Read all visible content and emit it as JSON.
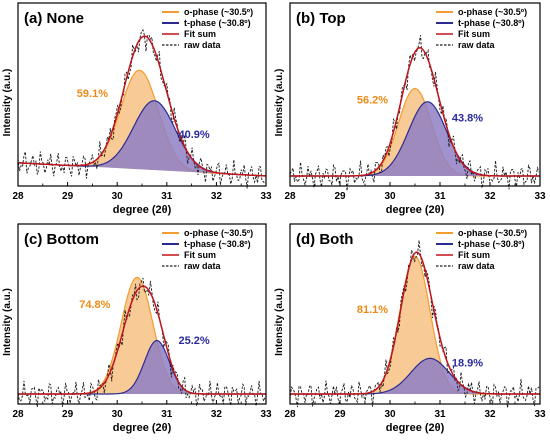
{
  "colors": {
    "o_phase": "#f39c2f",
    "o_phase_fill": "#f7c58b",
    "t_phase": "#2b2b8f",
    "t_phase_fill": "#8f7fc4",
    "fit_sum": "#c0141c",
    "raw_data": "#1a1a1a",
    "o_label": "#f08a17",
    "t_label": "#2a2aa0"
  },
  "chart_data": [
    {
      "type": "line",
      "panel_label": "(a) None",
      "xlabel": "degree (2θ)",
      "ylabel": "Intensity (a.u.)",
      "xlim": [
        28,
        33
      ],
      "x_ticks": [
        "28",
        "29",
        "30",
        "31",
        "32",
        "33"
      ],
      "legend": [
        "o-phase (~30.5º)",
        "t-phase (~30.8º)",
        "Fit sum",
        "raw data"
      ],
      "series": [
        {
          "name": "o-phase (~30.5º)",
          "center": 30.45,
          "amplitude": 0.6,
          "width": 0.38
        },
        {
          "name": "t-phase (~30.8º)",
          "center": 30.75,
          "amplitude": 0.42,
          "width": 0.42
        }
      ],
      "baseline_start": 0.08,
      "baseline_end": 0.0,
      "fit_amplitude": 0.9,
      "fraction_labels": {
        "o": "59.1%",
        "t": "40.9%"
      },
      "o_label_pos": [
        29.5,
        0.48
      ],
      "t_label_pos": [
        31.55,
        0.23
      ]
    },
    {
      "type": "line",
      "panel_label": "(b) Top",
      "xlabel": "degree (2θ)",
      "ylabel": "Intensity (a.u.)",
      "xlim": [
        28,
        33
      ],
      "x_ticks": [
        "28",
        "29",
        "30",
        "31",
        "32",
        "33"
      ],
      "legend": [
        "o-phase (~30.5º)",
        "t-phase (~30.8º)",
        "Fit sum",
        "raw data"
      ],
      "series": [
        {
          "name": "o-phase (~30.5º)",
          "center": 30.5,
          "amplitude": 0.53,
          "width": 0.33
        },
        {
          "name": "t-phase (~30.8º)",
          "center": 30.75,
          "amplitude": 0.45,
          "width": 0.38
        }
      ],
      "baseline_start": 0.0,
      "baseline_end": 0.0,
      "fit_amplitude": 0.86,
      "fraction_labels": {
        "o": "56.2%",
        "t": "43.8%"
      },
      "o_label_pos": [
        29.65,
        0.44
      ],
      "t_label_pos": [
        31.55,
        0.33
      ]
    },
    {
      "type": "line",
      "panel_label": "(c) Bottom",
      "xlabel": "degree (2θ)",
      "ylabel": "Intensity (a.u.)",
      "xlim": [
        28,
        33
      ],
      "x_ticks": [
        "28",
        "29",
        "30",
        "31",
        "32",
        "33"
      ],
      "legend": [
        "o-phase (~30.5º)",
        "t-phase (~30.8º)",
        "Fit sum",
        "raw data"
      ],
      "series": [
        {
          "name": "o-phase (~30.5º)",
          "center": 30.4,
          "amplitude": 0.72,
          "width": 0.32
        },
        {
          "name": "t-phase (~30.8º)",
          "center": 30.8,
          "amplitude": 0.33,
          "width": 0.25
        }
      ],
      "baseline_start": 0.0,
      "baseline_end": 0.0,
      "fit_amplitude": 0.86,
      "fraction_labels": {
        "o": "74.8%",
        "t": "25.2%"
      },
      "o_label_pos": [
        29.55,
        0.53
      ],
      "t_label_pos": [
        31.55,
        0.31
      ]
    },
    {
      "type": "line",
      "panel_label": "(d) Both",
      "xlabel": "degree (2θ)",
      "ylabel": "Intensity (a.u.)",
      "xlim": [
        28,
        33
      ],
      "x_ticks": [
        "28",
        "29",
        "30",
        "31",
        "32",
        "33"
      ],
      "legend": [
        "o-phase (~30.5º)",
        "t-phase (~30.8º)",
        "Fit sum",
        "raw data"
      ],
      "series": [
        {
          "name": "o-phase (~30.5º)",
          "center": 30.5,
          "amplitude": 0.85,
          "width": 0.3
        },
        {
          "name": "t-phase (~30.8º)",
          "center": 30.8,
          "amplitude": 0.22,
          "width": 0.38
        }
      ],
      "baseline_start": 0.0,
      "baseline_end": 0.0,
      "fit_amplitude": 0.96,
      "fraction_labels": {
        "o": "81.1%",
        "t": "18.9%"
      },
      "o_label_pos": [
        29.65,
        0.5
      ],
      "t_label_pos": [
        31.55,
        0.17
      ]
    }
  ]
}
